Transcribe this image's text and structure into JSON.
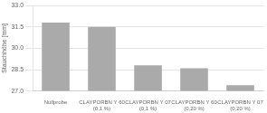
{
  "chart_data": {
    "type": "bar",
    "categories": [
      "Nullprobe",
      "CLAYPORBN Y 60\n(0,1 %)",
      "CLAYPORBN Y 07\n(0,1 %)",
      "CLAYPORBN Y 60\n(0,20 %)",
      "CLAYPORBN Y 07\n(0,20 %)"
    ],
    "values": [
      31.8,
      31.5,
      28.8,
      28.6,
      27.4
    ],
    "color": "#aaaaaa",
    "ylabel": "Stauchhöhe [mm]",
    "ylim": [
      27,
      33
    ],
    "yticks": [
      {
        "value": 27,
        "label": "27.0"
      },
      28.5,
      {
        "value": 30,
        "label": "30.0"
      },
      31.5,
      {
        "value": 33,
        "label": "33.0"
      }
    ],
    "grid": true
  }
}
